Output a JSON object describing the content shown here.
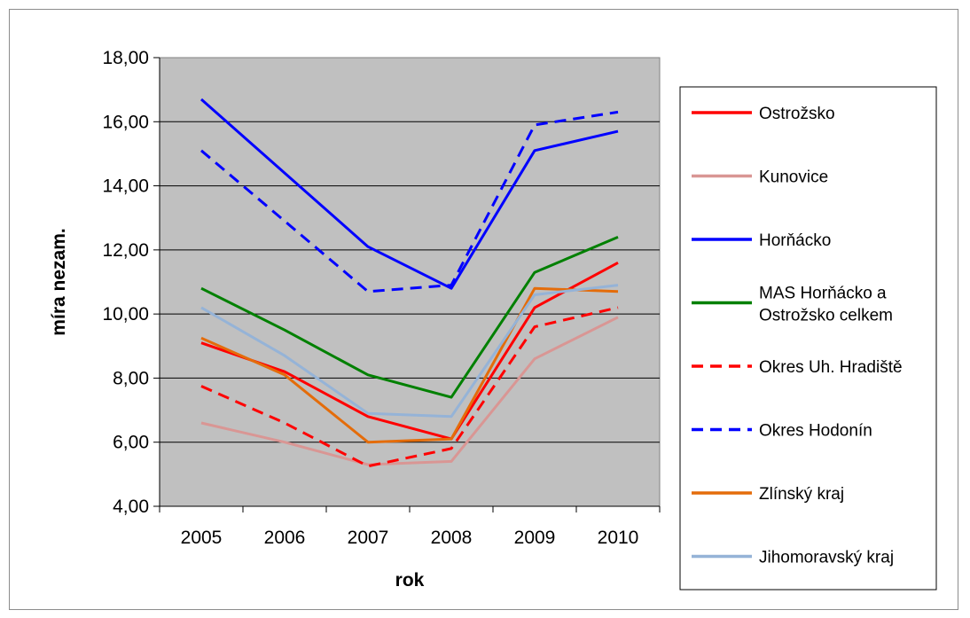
{
  "chart_data": {
    "type": "line",
    "title": "",
    "xlabel": "rok",
    "ylabel": "míra nezam.",
    "x": [
      "2005",
      "2006",
      "2007",
      "2008",
      "2009",
      "2010"
    ],
    "ylim": [
      4,
      18
    ],
    "yticks": [
      "4,00",
      "6,00",
      "8,00",
      "10,00",
      "12,00",
      "14,00",
      "16,00",
      "18,00"
    ],
    "grid": "horizontal",
    "plot_background": "#c0c0c0",
    "legend_placement": "right",
    "series": [
      {
        "name": "Ostrožsko",
        "color": "#ff0000",
        "dash": "solid",
        "values": [
          9.1,
          8.2,
          6.8,
          6.1,
          10.2,
          11.6
        ]
      },
      {
        "name": "Kunovice",
        "color": "#d99694",
        "dash": "solid",
        "values": [
          6.6,
          6.0,
          5.3,
          5.4,
          8.6,
          9.9
        ]
      },
      {
        "name": "Horňácko",
        "color": "#0000ff",
        "dash": "solid",
        "values": [
          16.7,
          14.4,
          12.1,
          10.8,
          15.1,
          15.7
        ]
      },
      {
        "name": "MAS Horňácko a Ostrožsko celkem",
        "legend_lines": [
          "MAS Horňácko a",
          "Ostrožsko celkem"
        ],
        "color": "#008000",
        "dash": "solid",
        "values": [
          10.8,
          9.5,
          8.1,
          7.4,
          11.3,
          12.4
        ]
      },
      {
        "name": "Okres Uh. Hradiště",
        "color": "#ff0000",
        "dash": "dashed",
        "values": [
          7.75,
          6.6,
          5.25,
          5.8,
          9.6,
          10.2
        ]
      },
      {
        "name": "Okres Hodonín",
        "color": "#0000ff",
        "dash": "dashed",
        "values": [
          15.1,
          12.9,
          10.7,
          10.9,
          15.9,
          16.3
        ]
      },
      {
        "name": "Zlínský kraj",
        "color": "#e46c0a",
        "dash": "solid",
        "values": [
          9.25,
          8.1,
          6.0,
          6.1,
          10.8,
          10.7
        ]
      },
      {
        "name": "Jihomoravský kraj",
        "color": "#95b3d7",
        "dash": "solid",
        "values": [
          10.2,
          8.7,
          6.9,
          6.8,
          10.6,
          10.9
        ]
      }
    ]
  }
}
